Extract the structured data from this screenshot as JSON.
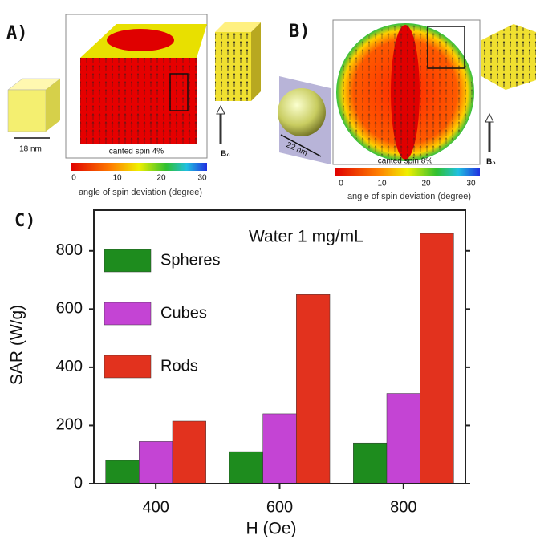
{
  "panel_a": {
    "label": "A)",
    "size": "18 nm",
    "caption": "canted spin 4%",
    "colorbar_ticks": [
      "0",
      "10",
      "20",
      "30"
    ],
    "colorbar_label": "angle of spin  deviation (degree)",
    "field": "B₀"
  },
  "panel_b": {
    "label": "B)",
    "size": "22 nm",
    "caption": "canted spin 8%",
    "colorbar_ticks": [
      "0",
      "10",
      "20",
      "30"
    ],
    "colorbar_label": "angle of spin  deviation (degree)",
    "field": "B₀"
  },
  "chart_data": {
    "type": "bar",
    "panel_label": "C)",
    "annotation": "Water 1 mg/mL",
    "x_label": "H (Oe)",
    "y_label": "SAR (W/g)",
    "categories": [
      "400",
      "600",
      "800"
    ],
    "series": [
      {
        "name": "Spheres",
        "color": "#1e8c1e",
        "values": [
          80,
          110,
          140
        ]
      },
      {
        "name": "Cubes",
        "color": "#c444d4",
        "values": [
          145,
          240,
          310
        ]
      },
      {
        "name": "Rods",
        "color": "#e2321e",
        "values": [
          215,
          650,
          860
        ]
      }
    ],
    "ylim": [
      0,
      940
    ],
    "yticks": [
      0,
      200,
      400,
      600,
      800
    ],
    "legend": "upper left"
  }
}
